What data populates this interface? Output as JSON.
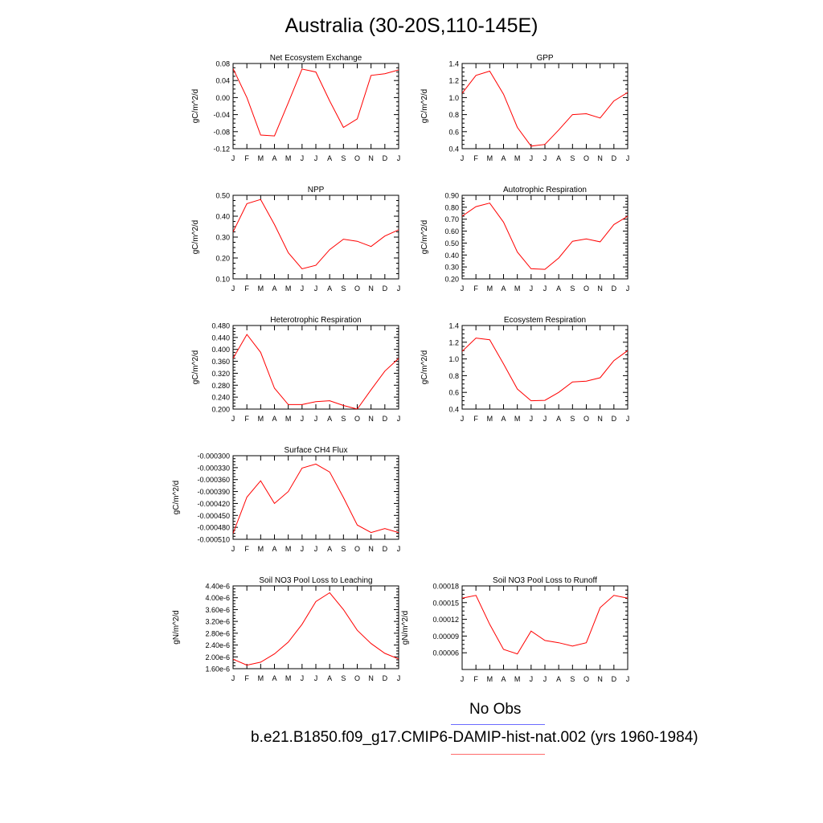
{
  "title": "Australia (30-20S,110-145E)",
  "months": [
    "J",
    "F",
    "M",
    "A",
    "M",
    "J",
    "J",
    "A",
    "S",
    "O",
    "N",
    "D",
    "J"
  ],
  "colors": {
    "series": "#ff0000",
    "legend_obs": "#6b6bff",
    "legend_model": "#ff6b6b"
  },
  "legend": {
    "obs_label": "No Obs",
    "model_label": "b.e21.B1850.f09_g17.CMIP6-DAMIP-hist-nat.002 (yrs 1960-1984)"
  },
  "chart_data": [
    {
      "type": "line",
      "title": "Net Ecosystem Exchange",
      "ylabel": "gC/m^2/d",
      "ylim": [
        -0.12,
        0.08
      ],
      "yticks": [
        "-0.12",
        "-0.08",
        "-0.04",
        "0.00",
        "0.04",
        "0.08"
      ],
      "ytick_values": [
        -0.12,
        -0.08,
        -0.04,
        0.0,
        0.04,
        0.08
      ],
      "values": [
        0.068,
        0.0,
        -0.088,
        -0.09,
        -0.012,
        0.067,
        0.06,
        -0.008,
        -0.07,
        -0.05,
        0.052,
        0.056,
        0.065
      ]
    },
    {
      "type": "line",
      "title": "GPP",
      "ylabel": "gC/m^2/d",
      "ylim": [
        0.4,
        1.4
      ],
      "yticks": [
        "0.4",
        "0.6",
        "0.8",
        "1.0",
        "1.2",
        "1.4"
      ],
      "ytick_values": [
        0.4,
        0.6,
        0.8,
        1.0,
        1.2,
        1.4
      ],
      "values": [
        1.05,
        1.26,
        1.31,
        1.04,
        0.65,
        0.43,
        0.45,
        0.62,
        0.8,
        0.81,
        0.76,
        0.96,
        1.06
      ]
    },
    {
      "type": "line",
      "title": "NPP",
      "ylabel": "gC/m^2/d",
      "ylim": [
        0.1,
        0.5
      ],
      "yticks": [
        "0.10",
        "0.20",
        "0.30",
        "0.40",
        "0.50"
      ],
      "ytick_values": [
        0.1,
        0.2,
        0.3,
        0.4,
        0.5
      ],
      "values": [
        0.325,
        0.46,
        0.48,
        0.36,
        0.225,
        0.148,
        0.165,
        0.24,
        0.29,
        0.28,
        0.255,
        0.305,
        0.335
      ]
    },
    {
      "type": "line",
      "title": "Autotrophic Respiration",
      "ylabel": "gC/m^2/d",
      "ylim": [
        0.2,
        0.9
      ],
      "yticks": [
        "0.20",
        "0.30",
        "0.40",
        "0.50",
        "0.60",
        "0.70",
        "0.80",
        "0.90"
      ],
      "ytick_values": [
        0.2,
        0.3,
        0.4,
        0.5,
        0.6,
        0.7,
        0.8,
        0.9
      ],
      "values": [
        0.725,
        0.805,
        0.835,
        0.675,
        0.425,
        0.285,
        0.28,
        0.375,
        0.515,
        0.535,
        0.51,
        0.655,
        0.725
      ]
    },
    {
      "type": "line",
      "title": "Heterotrophic Respiration",
      "ylabel": "gC/m^2/d",
      "ylim": [
        0.2,
        0.48
      ],
      "yticks": [
        "0.200",
        "0.240",
        "0.280",
        "0.320",
        "0.360",
        "0.400",
        "0.440",
        "0.480"
      ],
      "ytick_values": [
        0.2,
        0.24,
        0.28,
        0.32,
        0.36,
        0.4,
        0.44,
        0.48
      ],
      "values": [
        0.37,
        0.45,
        0.39,
        0.27,
        0.215,
        0.215,
        0.225,
        0.228,
        0.212,
        0.2,
        0.265,
        0.327,
        0.37
      ]
    },
    {
      "type": "line",
      "title": "Ecosystem Respiration",
      "ylabel": "gC/m^2/d",
      "ylim": [
        0.4,
        1.4
      ],
      "yticks": [
        "0.4",
        "0.6",
        "0.8",
        "1.0",
        "1.2",
        "1.4"
      ],
      "ytick_values": [
        0.4,
        0.6,
        0.8,
        1.0,
        1.2,
        1.4
      ],
      "values": [
        1.09,
        1.25,
        1.23,
        0.94,
        0.64,
        0.5,
        0.505,
        0.6,
        0.725,
        0.735,
        0.775,
        0.98,
        1.1
      ]
    },
    {
      "type": "line",
      "title": "Surface CH4 Flux",
      "ylabel": "gC/m^2/d",
      "ylim": [
        -0.00051,
        -0.0003
      ],
      "yticks": [
        "-0.000510",
        "-0.000480",
        "-0.000450",
        "-0.000420",
        "-0.000390",
        "-0.000360",
        "-0.000330",
        "-0.000300"
      ],
      "ytick_values": [
        -0.00051,
        -0.00048,
        -0.00045,
        -0.00042,
        -0.00039,
        -0.00036,
        -0.00033,
        -0.0003
      ],
      "values": [
        -0.000495,
        -0.000404,
        -0.000363,
        -0.00042,
        -0.00039,
        -0.000331,
        -0.000321,
        -0.000341,
        -0.000405,
        -0.000474,
        -0.000493,
        -0.000483,
        -0.000493
      ]
    },
    {
      "type": "line",
      "title": "Soil NO3 Pool Loss to Leaching",
      "ylabel": "gN/m^2/d",
      "ylim": [
        1.6e-06,
        4.4e-06
      ],
      "yticks": [
        "1.60e-6",
        "2.00e-6",
        "2.40e-6",
        "2.80e-6",
        "3.20e-6",
        "3.60e-6",
        "4.00e-6",
        "4.40e-6"
      ],
      "ytick_values": [
        1.6e-06,
        2e-06,
        2.4e-06,
        2.8e-06,
        3.2e-06,
        3.6e-06,
        4e-06,
        4.4e-06
      ],
      "values": [
        1.92e-06,
        1.72e-06,
        1.82e-06,
        2.1e-06,
        2.5e-06,
        3.1e-06,
        3.87e-06,
        4.17e-06,
        3.6e-06,
        2.9e-06,
        2.45e-06,
        2.12e-06,
        1.93e-06
      ]
    },
    {
      "type": "line",
      "title": "Soil NO3 Pool Loss to Runoff",
      "ylabel": "gN/m^2/d",
      "ylim": [
        3e-05,
        0.00018
      ],
      "yticks": [
        "0.00006",
        "0.00009",
        "0.00012",
        "0.00015",
        "0.00018"
      ],
      "ytick_values": [
        6e-05,
        9e-05,
        0.00012,
        0.00015,
        0.00018
      ],
      "values": [
        0.000158,
        0.000163,
        0.000111,
        6.6e-05,
        5.8e-05,
        9.9e-05,
        8.2e-05,
        7.8e-05,
        7.2e-05,
        7.8e-05,
        0.000141,
        0.000163,
        0.000158
      ]
    }
  ]
}
